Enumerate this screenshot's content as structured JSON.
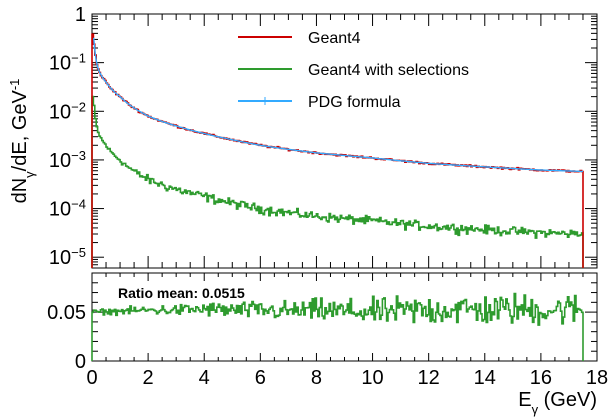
{
  "chart_data": [
    {
      "type": "line",
      "panel": "spectrum",
      "ylabel": "dNγ/dE, GeV⁻¹",
      "ylabel_parts": {
        "main": "dN",
        "sub": "γ",
        "rest": "/dE, GeV",
        "sup": "-1"
      },
      "yscale": "log",
      "xlim": [
        0,
        18
      ],
      "ylim": [
        6e-06,
        1.0
      ],
      "y_ticks": [
        {
          "value": 1,
          "label": "1"
        },
        {
          "value": 0.1,
          "label_base": "10",
          "label_exp": "−1"
        },
        {
          "value": 0.01,
          "label_base": "10",
          "label_exp": "−2"
        },
        {
          "value": 0.001,
          "label_base": "10",
          "label_exp": "−3"
        },
        {
          "value": 0.0001,
          "label_base": "10",
          "label_exp": "−4"
        },
        {
          "value": 1e-05,
          "label_base": "10",
          "label_exp": "−5"
        }
      ],
      "legend_position": "top-center",
      "series": [
        {
          "name": "Geant4",
          "color": "#cc0000",
          "x": [
            0.05,
            0.2,
            0.5,
            1,
            2,
            3,
            4,
            5,
            6,
            8,
            10,
            12,
            14,
            16,
            17.5
          ],
          "values": [
            0.4,
            0.08,
            0.04,
            0.02,
            0.008,
            0.005,
            0.0035,
            0.0026,
            0.002,
            0.0014,
            0.0011,
            0.00085,
            0.00072,
            0.00062,
            0.00058
          ]
        },
        {
          "name": "Geant4 with selections",
          "color": "#2e9b2e",
          "x": [
            0.05,
            0.2,
            0.5,
            1,
            2,
            3,
            4,
            5,
            6,
            8,
            10,
            12,
            14,
            16,
            17.5
          ],
          "values": [
            0.02,
            0.004,
            0.002,
            0.001,
            0.0004,
            0.00025,
            0.00018,
            0.00013,
            0.0001,
            7e-05,
            5.6e-05,
            4.4e-05,
            3.7e-05,
            3.2e-05,
            3e-05
          ]
        },
        {
          "name": "PDG formula",
          "color": "#33aaff",
          "x": [
            0.05,
            0.2,
            0.5,
            1,
            2,
            3,
            4,
            5,
            6,
            8,
            10,
            12,
            14,
            16,
            17.5
          ],
          "values": [
            0.4,
            0.08,
            0.04,
            0.02,
            0.008,
            0.005,
            0.0035,
            0.0026,
            0.002,
            0.0014,
            0.0011,
            0.00085,
            0.00072,
            0.00062,
            0.00058
          ]
        }
      ]
    },
    {
      "type": "line",
      "panel": "ratio",
      "annotation": "Ratio mean: 0.0515",
      "xlabel": "Eγ (GeV)",
      "xlabel_parts": {
        "main": "E",
        "sub": "γ",
        "rest": " (GeV)"
      },
      "xlim": [
        0,
        18
      ],
      "ylim": [
        0,
        0.09
      ],
      "x_ticks": [
        0,
        2,
        4,
        6,
        8,
        10,
        12,
        14,
        16,
        18
      ],
      "x_tick_labels": [
        "0",
        "2",
        "4",
        "6",
        "8",
        "10",
        "12",
        "14",
        "16",
        "18"
      ],
      "y_ticks": [
        0,
        0.05
      ],
      "y_tick_labels": [
        "0",
        "0.05"
      ],
      "series": [
        {
          "name": "ratio",
          "color": "#2e9b2e",
          "x": [
            0,
            1,
            2,
            3,
            4,
            5,
            6,
            7,
            8,
            9,
            10,
            11,
            12,
            13,
            14,
            15,
            16,
            17,
            17.5
          ],
          "values": [
            0.05,
            0.051,
            0.052,
            0.052,
            0.053,
            0.052,
            0.052,
            0.051,
            0.052,
            0.051,
            0.05,
            0.051,
            0.052,
            0.053,
            0.052,
            0.053,
            0.052,
            0.053,
            0.052
          ]
        }
      ]
    }
  ]
}
